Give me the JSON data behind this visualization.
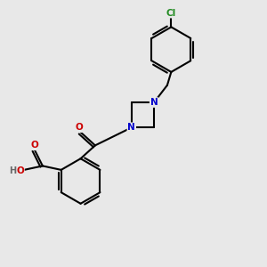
{
  "background_color": "#e8e8e8",
  "bond_color": "#000000",
  "bond_width": 1.5,
  "atom_colors": {
    "C": "#000000",
    "N": "#0000cc",
    "O": "#cc0000",
    "H": "#666666",
    "Cl": "#228B22"
  },
  "figsize": [
    3.0,
    3.0
  ],
  "dpi": 100
}
